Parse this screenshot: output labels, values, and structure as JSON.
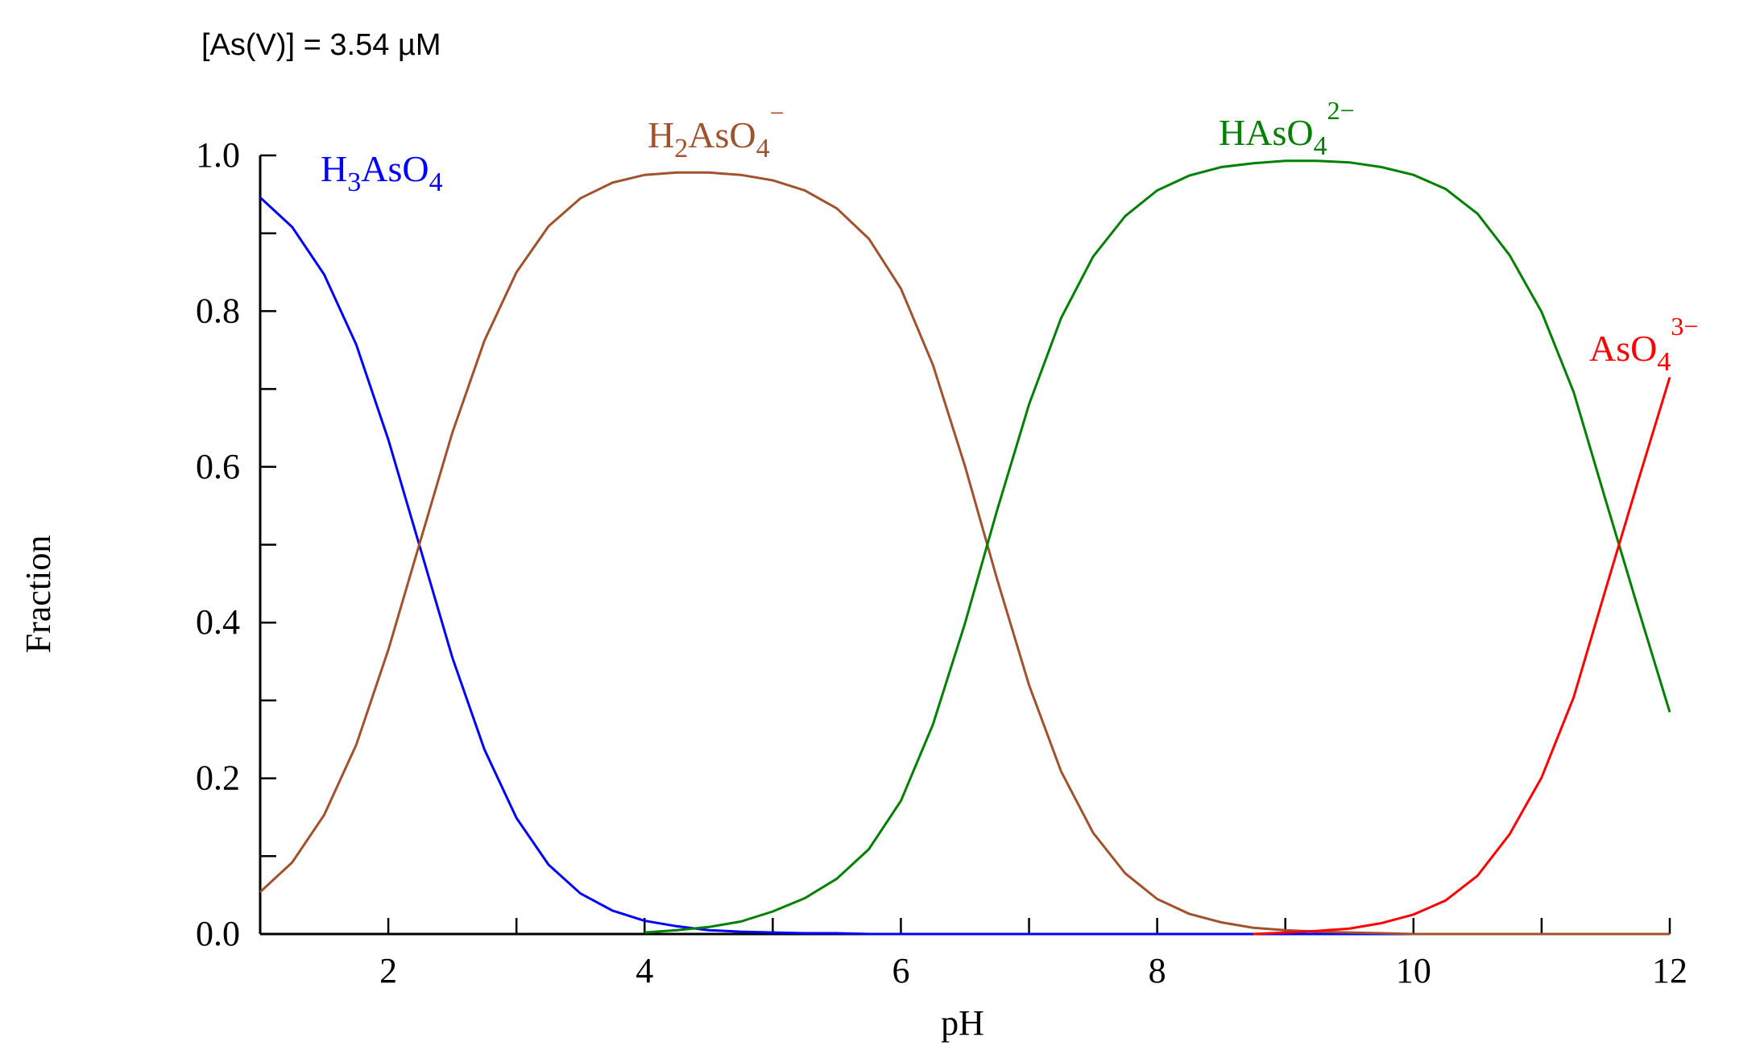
{
  "chart_data": {
    "type": "line",
    "annotation": "[As(V)] = 3.54 µM",
    "xlabel": "pH",
    "ylabel": "Fraction",
    "xlim": [
      1,
      12
    ],
    "ylim": [
      0,
      1
    ],
    "grid": false,
    "x_ticks": [
      2,
      4,
      6,
      8,
      10,
      12
    ],
    "x_tick_labels": [
      "2",
      "4",
      "6",
      "8",
      "10",
      "12"
    ],
    "y_ticks": [
      0.0,
      0.2,
      0.4,
      0.6,
      0.8,
      1.0
    ],
    "y_tick_labels": [
      "0.0",
      "0.2",
      "0.4",
      "0.6",
      "0.8",
      "1.0"
    ],
    "pKa": [
      2.24,
      6.76,
      11.6
    ],
    "x": [
      1.0,
      1.25,
      1.5,
      1.75,
      2.0,
      2.25,
      2.5,
      2.75,
      3.0,
      3.25,
      3.5,
      3.75,
      4.0,
      4.25,
      4.5,
      4.75,
      5.0,
      5.25,
      5.5,
      5.75,
      6.0,
      6.25,
      6.5,
      6.75,
      7.0,
      7.25,
      7.5,
      7.75,
      8.0,
      8.25,
      8.5,
      8.75,
      9.0,
      9.25,
      9.5,
      9.75,
      10.0,
      10.25,
      10.5,
      10.75,
      11.0,
      11.25,
      11.5,
      11.75,
      12.0
    ],
    "series": [
      {
        "name": "H3AsO4",
        "label_main": "H",
        "label_sub1": "3",
        "label_mid": "AsO",
        "label_sub2": "4",
        "label_sup": "",
        "color": "#0000ff",
        "values": [
          0.946,
          0.908,
          0.847,
          0.757,
          0.635,
          0.495,
          0.355,
          0.237,
          0.149,
          0.089,
          0.052,
          0.03,
          0.017,
          0.01,
          0.005,
          0.003,
          0.002,
          0.001,
          0.001,
          0.0,
          0.0,
          0.0,
          0.0,
          0.0,
          0.0,
          0.0,
          0.0,
          0.0,
          0.0,
          0.0,
          0.0,
          0.0,
          0.0,
          0.0,
          0.0,
          0.0,
          0.0,
          0.0,
          0.0,
          0.0,
          0.0,
          0.0,
          0.0,
          0.0,
          0.0
        ]
      },
      {
        "name": "H2AsO4-",
        "label_main": "H",
        "label_sub1": "2",
        "label_mid": "AsO",
        "label_sub2": "4",
        "label_sup": "−",
        "color": "#a0522d",
        "values": [
          0.054,
          0.092,
          0.153,
          0.243,
          0.365,
          0.505,
          0.644,
          0.762,
          0.85,
          0.909,
          0.945,
          0.965,
          0.975,
          0.978,
          0.978,
          0.975,
          0.968,
          0.955,
          0.932,
          0.893,
          0.829,
          0.731,
          0.601,
          0.456,
          0.32,
          0.209,
          0.13,
          0.078,
          0.045,
          0.026,
          0.015,
          0.008,
          0.005,
          0.003,
          0.002,
          0.001,
          0.0,
          0.0,
          0.0,
          0.0,
          0.0,
          0.0,
          0.0,
          0.0,
          0.0
        ]
      },
      {
        "name": "HAsO42-",
        "label_main": "H",
        "label_sub1": "",
        "label_mid": "AsO",
        "label_sub2": "4",
        "label_sup": "2−",
        "color": "#008000",
        "values": [
          0.0,
          0.0,
          0.0,
          0.0,
          0.0,
          0.0,
          0.0,
          0.0,
          0.0,
          0.0,
          0.0,
          0.0,
          0.002,
          0.005,
          0.009,
          0.016,
          0.029,
          0.046,
          0.071,
          0.109,
          0.171,
          0.269,
          0.399,
          0.544,
          0.68,
          0.791,
          0.87,
          0.922,
          0.955,
          0.974,
          0.985,
          0.99,
          0.993,
          0.993,
          0.991,
          0.985,
          0.975,
          0.957,
          0.925,
          0.872,
          0.799,
          0.696,
          0.557,
          0.42,
          0.285
        ]
      },
      {
        "name": "AsO43-",
        "label_main": "",
        "label_sub1": "",
        "label_mid": "AsO",
        "label_sub2": "4",
        "label_sup": "3−",
        "color": "#ff0000",
        "values": [
          0.0,
          0.0,
          0.0,
          0.0,
          0.0,
          0.0,
          0.0,
          0.0,
          0.0,
          0.0,
          0.0,
          0.0,
          0.0,
          0.0,
          0.0,
          0.0,
          0.0,
          0.0,
          0.0,
          0.0,
          0.0,
          0.0,
          0.0,
          0.0,
          0.0,
          0.0,
          0.0,
          0.0,
          0.0,
          0.0,
          0.0,
          0.0,
          0.002,
          0.004,
          0.007,
          0.014,
          0.025,
          0.043,
          0.075,
          0.128,
          0.201,
          0.304,
          0.443,
          0.58,
          0.715
        ]
      }
    ]
  }
}
